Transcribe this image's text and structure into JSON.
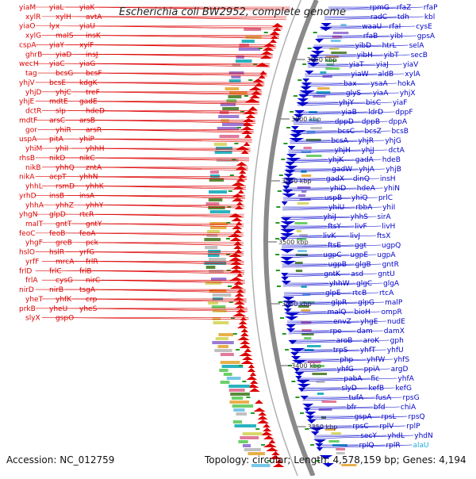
{
  "title": "Escherichia coli BW2952, complete genome",
  "accession": "Accession: NC_012759",
  "topology": "Topology: circular; Length: 4,578,159 bp; Genes: 4,194",
  "colors": {
    "left_genes": "#dd0000",
    "right_genes": "#0000cc",
    "rna_gene": "#22aadd",
    "backbone": "#999999",
    "tick": "#229922"
  },
  "scale_ticks": [
    "3650 kbp",
    "3600 kbp",
    "3550 kbp",
    "3500 kbp",
    "3450 kbp",
    "3400 kbp",
    "3350 kbp"
  ],
  "left_labels": [
    {
      "t": "yiaM"
    },
    {
      "t": "yiaL"
    },
    {
      "t": "yiaK"
    },
    {
      "t": "xylR"
    },
    {
      "t": "xylH"
    },
    {
      "t": "avtA"
    },
    {
      "t": "yiaO"
    },
    {
      "t": "lyx"
    },
    {
      "t": "yiaU"
    },
    {
      "t": "xylG"
    },
    {
      "t": "malS"
    },
    {
      "t": "insK"
    },
    {
      "t": "cspA"
    },
    {
      "t": "yiaY"
    },
    {
      "t": "xylF"
    },
    {
      "t": "ghrB"
    },
    {
      "t": "yiaD"
    },
    {
      "t": "insJ"
    },
    {
      "t": "wecH"
    },
    {
      "t": "yiaC"
    },
    {
      "t": "yiaG"
    },
    {
      "t": "tag"
    },
    {
      "t": "bcsG"
    },
    {
      "t": "bcsF"
    },
    {
      "t": "yhjV"
    },
    {
      "t": "bcsE"
    },
    {
      "t": "kdgK"
    },
    {
      "t": "yhjD"
    },
    {
      "t": "yhjC"
    },
    {
      "t": "treF"
    },
    {
      "t": "yhjE"
    },
    {
      "t": "mdtE"
    },
    {
      "t": "gadE"
    },
    {
      "t": "dctR"
    },
    {
      "t": "slp"
    },
    {
      "t": "hdeD"
    },
    {
      "t": "mdtF"
    },
    {
      "t": "arsC"
    },
    {
      "t": "arsB"
    },
    {
      "t": "gor"
    },
    {
      "t": "yhiR"
    },
    {
      "t": "arsR"
    },
    {
      "t": "uspA"
    },
    {
      "t": "pitA"
    },
    {
      "t": "yhiP"
    },
    {
      "t": "yhiM"
    },
    {
      "t": "yhiI"
    },
    {
      "t": "yhhH"
    },
    {
      "t": "rhsB"
    },
    {
      "t": "nikD"
    },
    {
      "t": "nikC"
    },
    {
      "t": "nikB"
    },
    {
      "t": "yhhQ"
    },
    {
      "t": "zntA"
    },
    {
      "t": "nikA"
    },
    {
      "t": "acpT"
    },
    {
      "t": "yhhN"
    },
    {
      "t": "yhhL"
    },
    {
      "t": "rsmD"
    },
    {
      "t": "yhhK"
    },
    {
      "t": "yrhD"
    },
    {
      "t": "insB"
    },
    {
      "t": "insA"
    },
    {
      "t": "yhhA"
    },
    {
      "t": "yhhZ"
    },
    {
      "t": "yhhY"
    },
    {
      "t": "yhgN"
    },
    {
      "t": "glpD"
    },
    {
      "t": "rtcR"
    },
    {
      "t": "malT"
    },
    {
      "t": "gntT"
    },
    {
      "t": "gntY"
    },
    {
      "t": "feoC"
    },
    {
      "t": "feoB"
    },
    {
      "t": "feoA"
    },
    {
      "t": "yhgF"
    },
    {
      "t": "greB"
    },
    {
      "t": "pck"
    },
    {
      "t": "hslO"
    },
    {
      "t": "hslR"
    },
    {
      "t": "yrfG"
    },
    {
      "t": "yrfF"
    },
    {
      "t": "mrcA"
    },
    {
      "t": "frlR"
    },
    {
      "t": "frlD"
    },
    {
      "t": "frlC"
    },
    {
      "t": "frlB"
    },
    {
      "t": "frlA"
    },
    {
      "t": "cysG"
    },
    {
      "t": "nirC"
    },
    {
      "t": "nirD"
    },
    {
      "t": "nirB"
    },
    {
      "t": "tsgA"
    },
    {
      "t": "yheT"
    },
    {
      "t": "yhfK"
    },
    {
      "t": "crp"
    },
    {
      "t": "prkB"
    },
    {
      "t": "yheU"
    },
    {
      "t": "yheS"
    },
    {
      "t": "slyX"
    },
    {
      "t": "gspO"
    }
  ],
  "right_labels": [
    {
      "t": "rpmG"
    },
    {
      "t": "rfaZ"
    },
    {
      "t": "rfaP"
    },
    {
      "t": "radC"
    },
    {
      "t": "tdh"
    },
    {
      "t": "kbl"
    },
    {
      "t": "waaU"
    },
    {
      "t": "rfaI"
    },
    {
      "t": "cysE"
    },
    {
      "t": "rfaB"
    },
    {
      "t": "yibI"
    },
    {
      "t": "gpsA"
    },
    {
      "t": "yibD"
    },
    {
      "t": "htrL"
    },
    {
      "t": "selA"
    },
    {
      "t": "yibH"
    },
    {
      "t": "yibT"
    },
    {
      "t": "secB"
    },
    {
      "t": "yiaT"
    },
    {
      "t": "yiaJ"
    },
    {
      "t": "yiaV"
    },
    {
      "t": "yiaW"
    },
    {
      "t": "aldB"
    },
    {
      "t": "xylA"
    },
    {
      "t": "bax"
    },
    {
      "t": "ysaA"
    },
    {
      "t": "hokA"
    },
    {
      "t": "glyS"
    },
    {
      "t": "yiaA"
    },
    {
      "t": "yhjX"
    },
    {
      "t": "yhjY"
    },
    {
      "t": "bisC"
    },
    {
      "t": "yiaF"
    },
    {
      "t": "yiaB"
    },
    {
      "t": "ldrD"
    },
    {
      "t": "dppF"
    },
    {
      "t": "dppD"
    },
    {
      "t": "dppB"
    },
    {
      "t": "dppA"
    },
    {
      "t": "bcsC"
    },
    {
      "t": "bcsZ"
    },
    {
      "t": "bcsB"
    },
    {
      "t": "bcsA"
    },
    {
      "t": "yhjR"
    },
    {
      "t": "yhjG"
    },
    {
      "t": "yhjH"
    },
    {
      "t": "yhjJ"
    },
    {
      "t": "dctA"
    },
    {
      "t": "yhjK"
    },
    {
      "t": "gadA"
    },
    {
      "t": "hdeB"
    },
    {
      "t": "gadW"
    },
    {
      "t": "yhjA"
    },
    {
      "t": "yhjB"
    },
    {
      "t": "gadX"
    },
    {
      "t": "dinQ"
    },
    {
      "t": "insH"
    },
    {
      "t": "yhiD"
    },
    {
      "t": "hdeA"
    },
    {
      "t": "yhiN"
    },
    {
      "t": "uspB"
    },
    {
      "t": "yhiQ"
    },
    {
      "t": "prlC"
    },
    {
      "t": "yhiU"
    },
    {
      "t": "rbbA"
    },
    {
      "t": "yhiI"
    },
    {
      "t": "yhiJ"
    },
    {
      "t": "yhhS"
    },
    {
      "t": "sirA"
    },
    {
      "t": "ftsY"
    },
    {
      "t": "livF"
    },
    {
      "t": "livH"
    },
    {
      "t": "livK"
    },
    {
      "t": "livJ"
    },
    {
      "t": "ftsX"
    },
    {
      "t": "ftsE"
    },
    {
      "t": "ggt"
    },
    {
      "t": "ugpQ"
    },
    {
      "t": "ugpC"
    },
    {
      "t": "ugpE"
    },
    {
      "t": "ugpA"
    },
    {
      "t": "ugpB"
    },
    {
      "t": "glgB"
    },
    {
      "t": "gntR"
    },
    {
      "t": "gntK"
    },
    {
      "t": "asd"
    },
    {
      "t": "gntU"
    },
    {
      "t": "yhhW"
    },
    {
      "t": "glgC"
    },
    {
      "t": "glgA"
    },
    {
      "t": "glpE"
    },
    {
      "t": "rtcB"
    },
    {
      "t": "rtcA"
    },
    {
      "t": "glpR"
    },
    {
      "t": "glpG"
    },
    {
      "t": "malP"
    },
    {
      "t": "malQ"
    },
    {
      "t": "bioH"
    },
    {
      "t": "ompR"
    },
    {
      "t": "envZ"
    },
    {
      "t": "yhgE"
    },
    {
      "t": "nudE"
    },
    {
      "t": "rpe"
    },
    {
      "t": "dam"
    },
    {
      "t": "damX"
    },
    {
      "t": "aroB"
    },
    {
      "t": "aroK"
    },
    {
      "t": "gph"
    },
    {
      "t": "trpS"
    },
    {
      "t": "yhfT"
    },
    {
      "t": "yhfU"
    },
    {
      "t": "php"
    },
    {
      "t": "yhfW"
    },
    {
      "t": "yhfS"
    },
    {
      "t": "yhfG"
    },
    {
      "t": "ppiA"
    },
    {
      "t": "argD"
    },
    {
      "t": "pabA"
    },
    {
      "t": "fic"
    },
    {
      "t": "yhfA"
    },
    {
      "t": "slyD"
    },
    {
      "t": "kefB"
    },
    {
      "t": "kefG"
    },
    {
      "t": "tufA"
    },
    {
      "t": "fusA"
    },
    {
      "t": "rpsG"
    },
    {
      "t": "bfr"
    },
    {
      "t": "bfd"
    },
    {
      "t": "chiA"
    },
    {
      "t": "gspA"
    },
    {
      "t": "rpsL"
    },
    {
      "t": "rpsQ"
    },
    {
      "t": "rpsC"
    },
    {
      "t": "rplV"
    },
    {
      "t": "rplP"
    },
    {
      "t": "secY"
    },
    {
      "t": "yhdL"
    },
    {
      "t": "yhdN"
    },
    {
      "t": "rplQ"
    },
    {
      "t": "rplR"
    },
    {
      "t": "alaU"
    }
  ]
}
